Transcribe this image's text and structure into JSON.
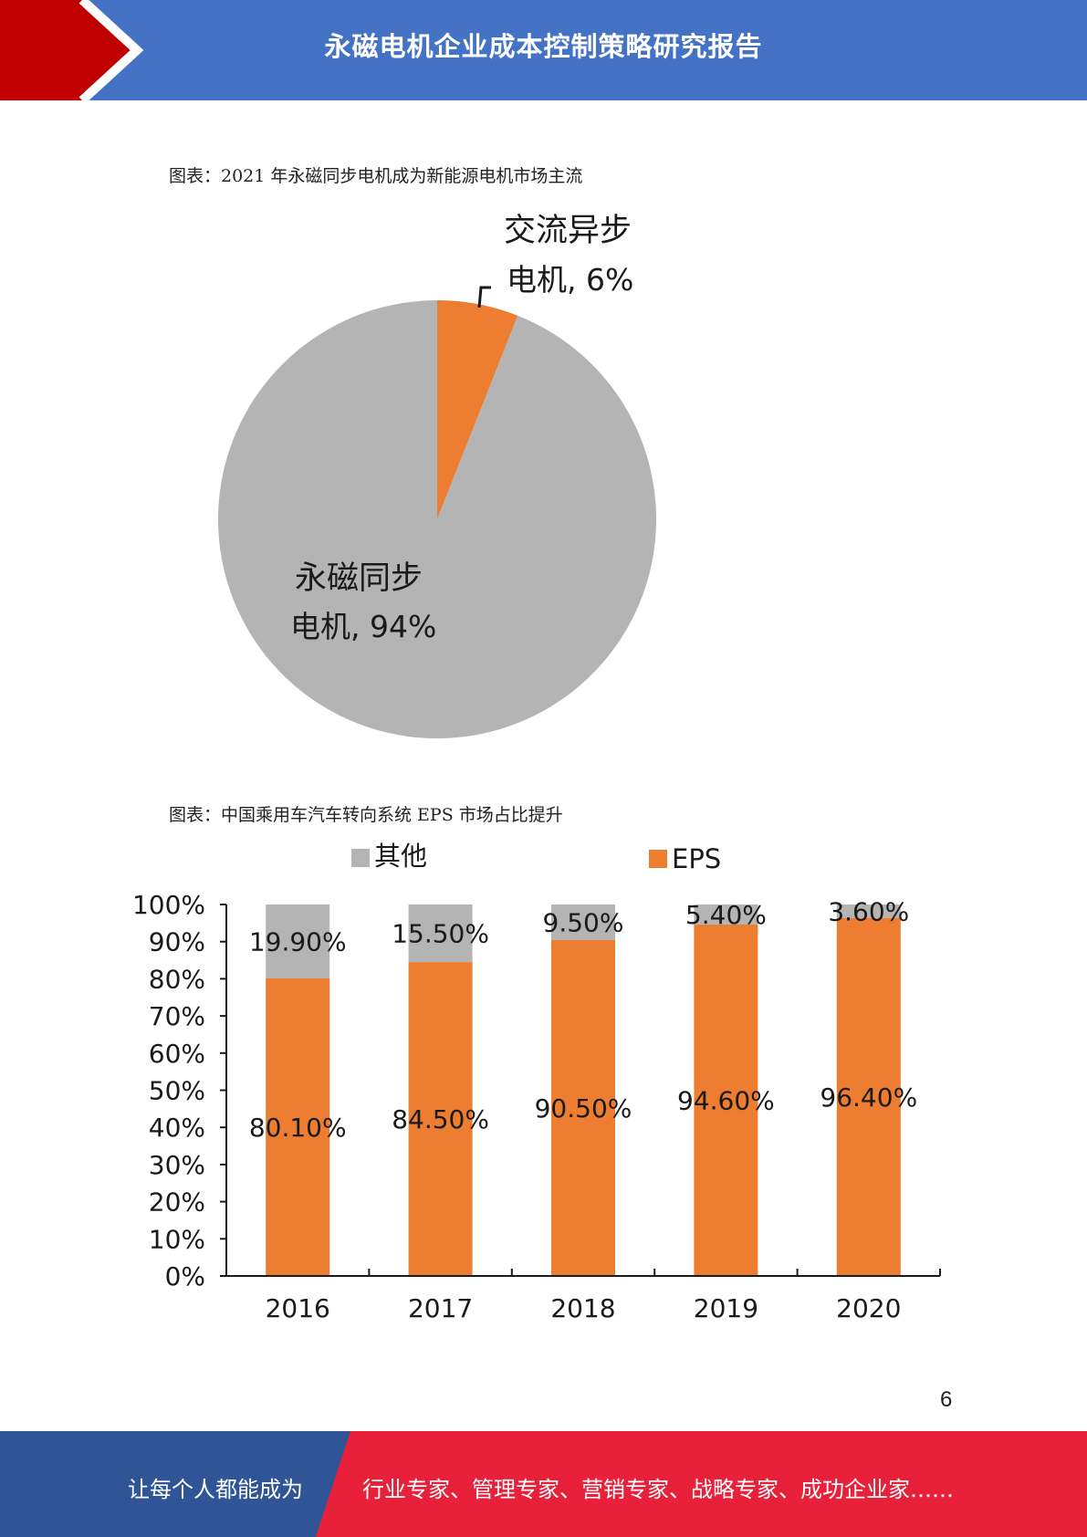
{
  "header": {
    "title": "永磁电机企业成本控制策略研究报告",
    "bg_color": "#4472c4",
    "accent_color": "#c00000"
  },
  "captions": {
    "chart1": "图表：2021 年永磁同步电机成为新能源电机市场主流",
    "chart2": "图表：中国乘用车汽车转向系统 EPS 市场占比提升"
  },
  "chart_data": [
    {
      "type": "pie",
      "slices": [
        {
          "label_line1": "交流异步",
          "label_line2": "电机, 6%",
          "value": 6,
          "color": "#ed7d31"
        },
        {
          "label_line1": "永磁同步",
          "label_line2": "电机, 94%",
          "value": 94,
          "color": "#b4b4b4"
        }
      ]
    },
    {
      "type": "bar",
      "stacked": true,
      "categories": [
        "2016",
        "2017",
        "2018",
        "2019",
        "2020"
      ],
      "series": [
        {
          "name": "EPS",
          "color": "#ed7d31",
          "values": [
            80.1,
            84.5,
            90.5,
            94.6,
            96.4
          ],
          "labels": [
            "80.10%",
            "84.50%",
            "90.50%",
            "94.60%",
            "96.40%"
          ]
        },
        {
          "name": "其他",
          "color": "#b4b4b4",
          "values": [
            19.9,
            15.5,
            9.5,
            5.4,
            3.6
          ],
          "labels": [
            "19.90%",
            "15.50%",
            "9.50%",
            "5.40%",
            "3.60%"
          ]
        }
      ],
      "ylim": [
        0,
        100
      ],
      "yticks": [
        "0%",
        "10%",
        "20%",
        "30%",
        "40%",
        "50%",
        "60%",
        "70%",
        "80%",
        "90%",
        "100%"
      ],
      "legend_position": "top"
    }
  ],
  "page_number": "6",
  "footer": {
    "left_text": "让每个人都能成为",
    "right_text": "行业专家、管理专家、营销专家、战略专家、成功企业家……",
    "left_color": "#2f5597",
    "right_color": "#e8203a"
  }
}
